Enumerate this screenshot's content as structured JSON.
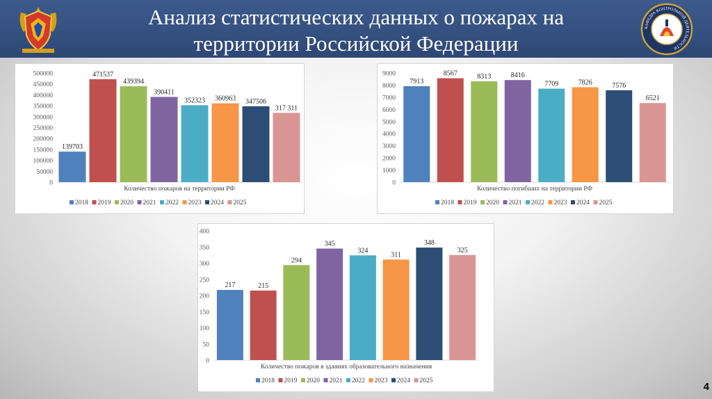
{
  "slide": {
    "title_line1": "Анализ статистических данных о пожарах на",
    "title_line2": "территории Российской Федерации",
    "page_number": "4",
    "logo_left_icon": "emercom-emblem-icon",
    "logo_right_icon": "department-seal-icon",
    "logo_right_text": "КАФЕДРА КОНТРОЛЬНОЙ ДЕЯТЕЛЬНОСТИ"
  },
  "colors": {
    "header_bg": "#34507f",
    "series": [
      "#4f81bd",
      "#c0504d",
      "#9bbb59",
      "#8064a2",
      "#4bacc6",
      "#f79646",
      "#2c4d75",
      "#d99594"
    ]
  },
  "chart_data": [
    {
      "type": "bar",
      "categories": [
        "2018",
        "2019",
        "2020",
        "2021",
        "2022",
        "2023",
        "2024",
        "2025"
      ],
      "values": [
        139703,
        471537,
        439394,
        390411,
        352323,
        360963,
        347506,
        317311
      ],
      "value_labels": [
        "139703",
        "471537",
        "439394",
        "390411",
        "352323",
        "360963",
        "347506",
        "317 311"
      ],
      "title": "",
      "xlabel": "Количество пожаров на территории РФ",
      "ylabel": "",
      "ylim": [
        0,
        500000
      ],
      "yticks": [
        "0",
        "50000",
        "100000",
        "150000",
        "200000",
        "250000",
        "300000",
        "350000",
        "400000",
        "450000",
        "500000"
      ],
      "legend": "bottom",
      "grid": false
    },
    {
      "type": "bar",
      "categories": [
        "2018",
        "2019",
        "2020",
        "2021",
        "2022",
        "2023",
        "2024",
        "2025"
      ],
      "values": [
        7913,
        8567,
        8313,
        8416,
        7709,
        7826,
        7576,
        6521
      ],
      "value_labels": [
        "7913",
        "8567",
        "8313",
        "8416",
        "7709",
        "7826",
        "7576",
        "6521"
      ],
      "title": "",
      "xlabel": "Количество погибших на территории РФ",
      "ylabel": "",
      "ylim": [
        0,
        9000
      ],
      "yticks": [
        "0",
        "1000",
        "2000",
        "3000",
        "4000",
        "5000",
        "6000",
        "7000",
        "8000",
        "9000"
      ],
      "legend": "bottom",
      "grid": false
    },
    {
      "type": "bar",
      "categories": [
        "2018",
        "2019",
        "2020",
        "2021",
        "2022",
        "2023",
        "2024",
        "2025"
      ],
      "values": [
        217,
        215,
        294,
        345,
        324,
        311,
        348,
        325
      ],
      "value_labels": [
        "217",
        "215",
        "294",
        "345",
        "324",
        "311",
        "348",
        "325"
      ],
      "title": "",
      "xlabel": "Количество пожаров в зданиях образовательного назначения",
      "ylabel": "",
      "ylim": [
        0,
        400
      ],
      "yticks": [
        "0",
        "50",
        "100",
        "150",
        "200",
        "250",
        "300",
        "350",
        "400"
      ],
      "legend": "bottom",
      "grid": false
    }
  ]
}
